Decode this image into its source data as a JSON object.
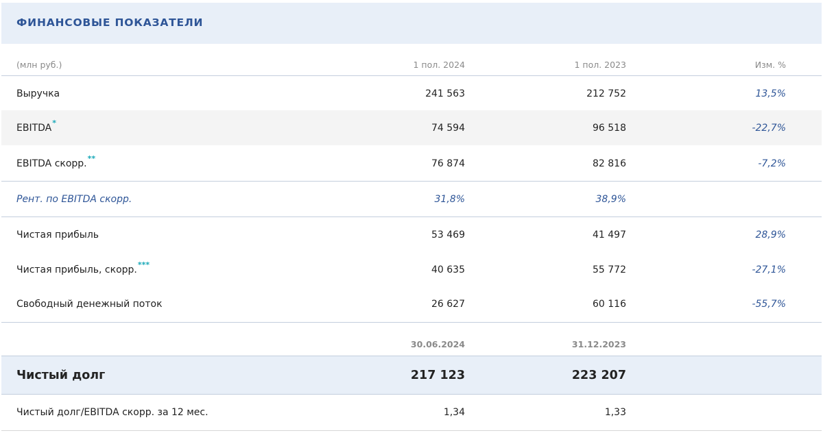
{
  "header": {
    "title": "ФИНАНСОВЫЕ ПОКАЗАТЕЛИ"
  },
  "colheads": {
    "unit": "(млн руб.)",
    "p1": "1 пол. 2024",
    "p2": "1 пол. 2023",
    "chg": "Изм. %"
  },
  "rows": [
    {
      "label": "Выручка",
      "v1": "241 563",
      "v2": "212 752",
      "chg": "13,5%",
      "stars": ""
    },
    {
      "label": "EBITDA",
      "v1": "74 594",
      "v2": "96 518",
      "chg": "-22,7%",
      "stars": "*"
    },
    {
      "label": "EBITDA скорр.",
      "v1": "76 874",
      "v2": "82 816",
      "chg": "-7,2%",
      "stars": "**"
    },
    {
      "label": "Рент. по EBITDA скорр.",
      "v1": "31,8%",
      "v2": "38,9%",
      "chg": "",
      "stars": ""
    },
    {
      "label": "Чистая прибыль",
      "v1": "53 469",
      "v2": "41 497",
      "chg": "28,9%",
      "stars": ""
    },
    {
      "label": "Чистая прибыль, скорр.",
      "v1": "40 635",
      "v2": "55 772",
      "chg": "-27,1%",
      "stars": "***"
    },
    {
      "label": "Свободный денежный поток",
      "v1": "26 627",
      "v2": "60 116",
      "chg": "-55,7%",
      "stars": ""
    }
  ],
  "debt_dates": {
    "d1": "30.06.2024",
    "d2": "31.12.2023"
  },
  "net_debt": {
    "label": "Чистый долг",
    "v1": "217 123",
    "v2": "223 207"
  },
  "ratio": {
    "label": "Чистый долг/EBITDA скорр. за 12 мес.",
    "v1": "1,34",
    "v2": "1,33"
  },
  "colors": {
    "accent": "#2e5597",
    "header_bg": "#e8eff8",
    "star": "#19a8b8"
  }
}
